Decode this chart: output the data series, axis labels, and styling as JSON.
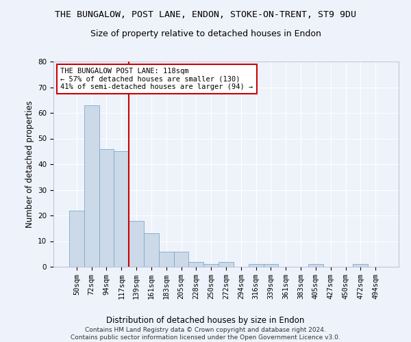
{
  "title": "THE BUNGALOW, POST LANE, ENDON, STOKE-ON-TRENT, ST9 9DU",
  "subtitle": "Size of property relative to detached houses in Endon",
  "xlabel": "Distribution of detached houses by size in Endon",
  "ylabel": "Number of detached properties",
  "categories": [
    "50sqm",
    "72sqm",
    "94sqm",
    "117sqm",
    "139sqm",
    "161sqm",
    "183sqm",
    "205sqm",
    "228sqm",
    "250sqm",
    "272sqm",
    "294sqm",
    "316sqm",
    "339sqm",
    "361sqm",
    "383sqm",
    "405sqm",
    "427sqm",
    "450sqm",
    "472sqm",
    "494sqm"
  ],
  "values": [
    22,
    63,
    46,
    45,
    18,
    13,
    6,
    6,
    2,
    1,
    2,
    0,
    1,
    1,
    0,
    0,
    1,
    0,
    0,
    1,
    0
  ],
  "bar_color": "#ccd9e8",
  "bar_edge_color": "#7aaac8",
  "background_color": "#eef2fa",
  "grid_color": "#ffffff",
  "vline_x": 3.5,
  "vline_color": "#cc0000",
  "vline_lw": 1.5,
  "annotation_text": "THE BUNGALOW POST LANE: 118sqm\n← 57% of detached houses are smaller (130)\n41% of semi-detached houses are larger (94) →",
  "annotation_box_color": "#ffffff",
  "annotation_box_edge": "#cc0000",
  "footer": "Contains HM Land Registry data © Crown copyright and database right 2024.\nContains public sector information licensed under the Open Government Licence v3.0.",
  "ylim": [
    0,
    80
  ],
  "yticks": [
    0,
    10,
    20,
    30,
    40,
    50,
    60,
    70,
    80
  ],
  "title_fontsize": 9.5,
  "subtitle_fontsize": 9,
  "xlabel_fontsize": 8.5,
  "ylabel_fontsize": 8.5,
  "tick_fontsize": 7.5,
  "annotation_fontsize": 7.5,
  "footer_fontsize": 6.5
}
